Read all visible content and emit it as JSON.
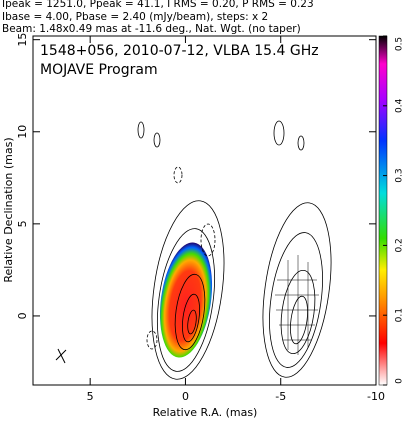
{
  "chart_data": {
    "type": "image",
    "header": [
      "Ipeak = 1251.0, Ppeak = 41.1, I RMS = 0.20, P RMS = 0.23",
      "Ibase = 4.00, Pbase = 2.40 (mJy/beam), steps: x 2",
      "Beam: 1.48x0.49 mas at -11.6 deg., Nat. Wgt. (no taper)"
    ],
    "title": "1548+056, 2010-07-12, VLBA 15.4 GHz",
    "subtitle": "MOJAVE Program",
    "xlabel": "Relative R.A. (mas)",
    "ylabel": "Relative Declination (mas)",
    "xlim": [
      8,
      -10
    ],
    "xticks": [
      5,
      0,
      -5,
      -10
    ],
    "ylim": [
      -3.75,
      15.2
    ],
    "yticks": [
      0,
      5,
      10,
      15
    ],
    "colorbar": {
      "lim": [
        0,
        0.5
      ],
      "ticks": [
        0,
        0.1,
        0.2,
        0.3,
        0.4,
        0.5
      ]
    }
  }
}
